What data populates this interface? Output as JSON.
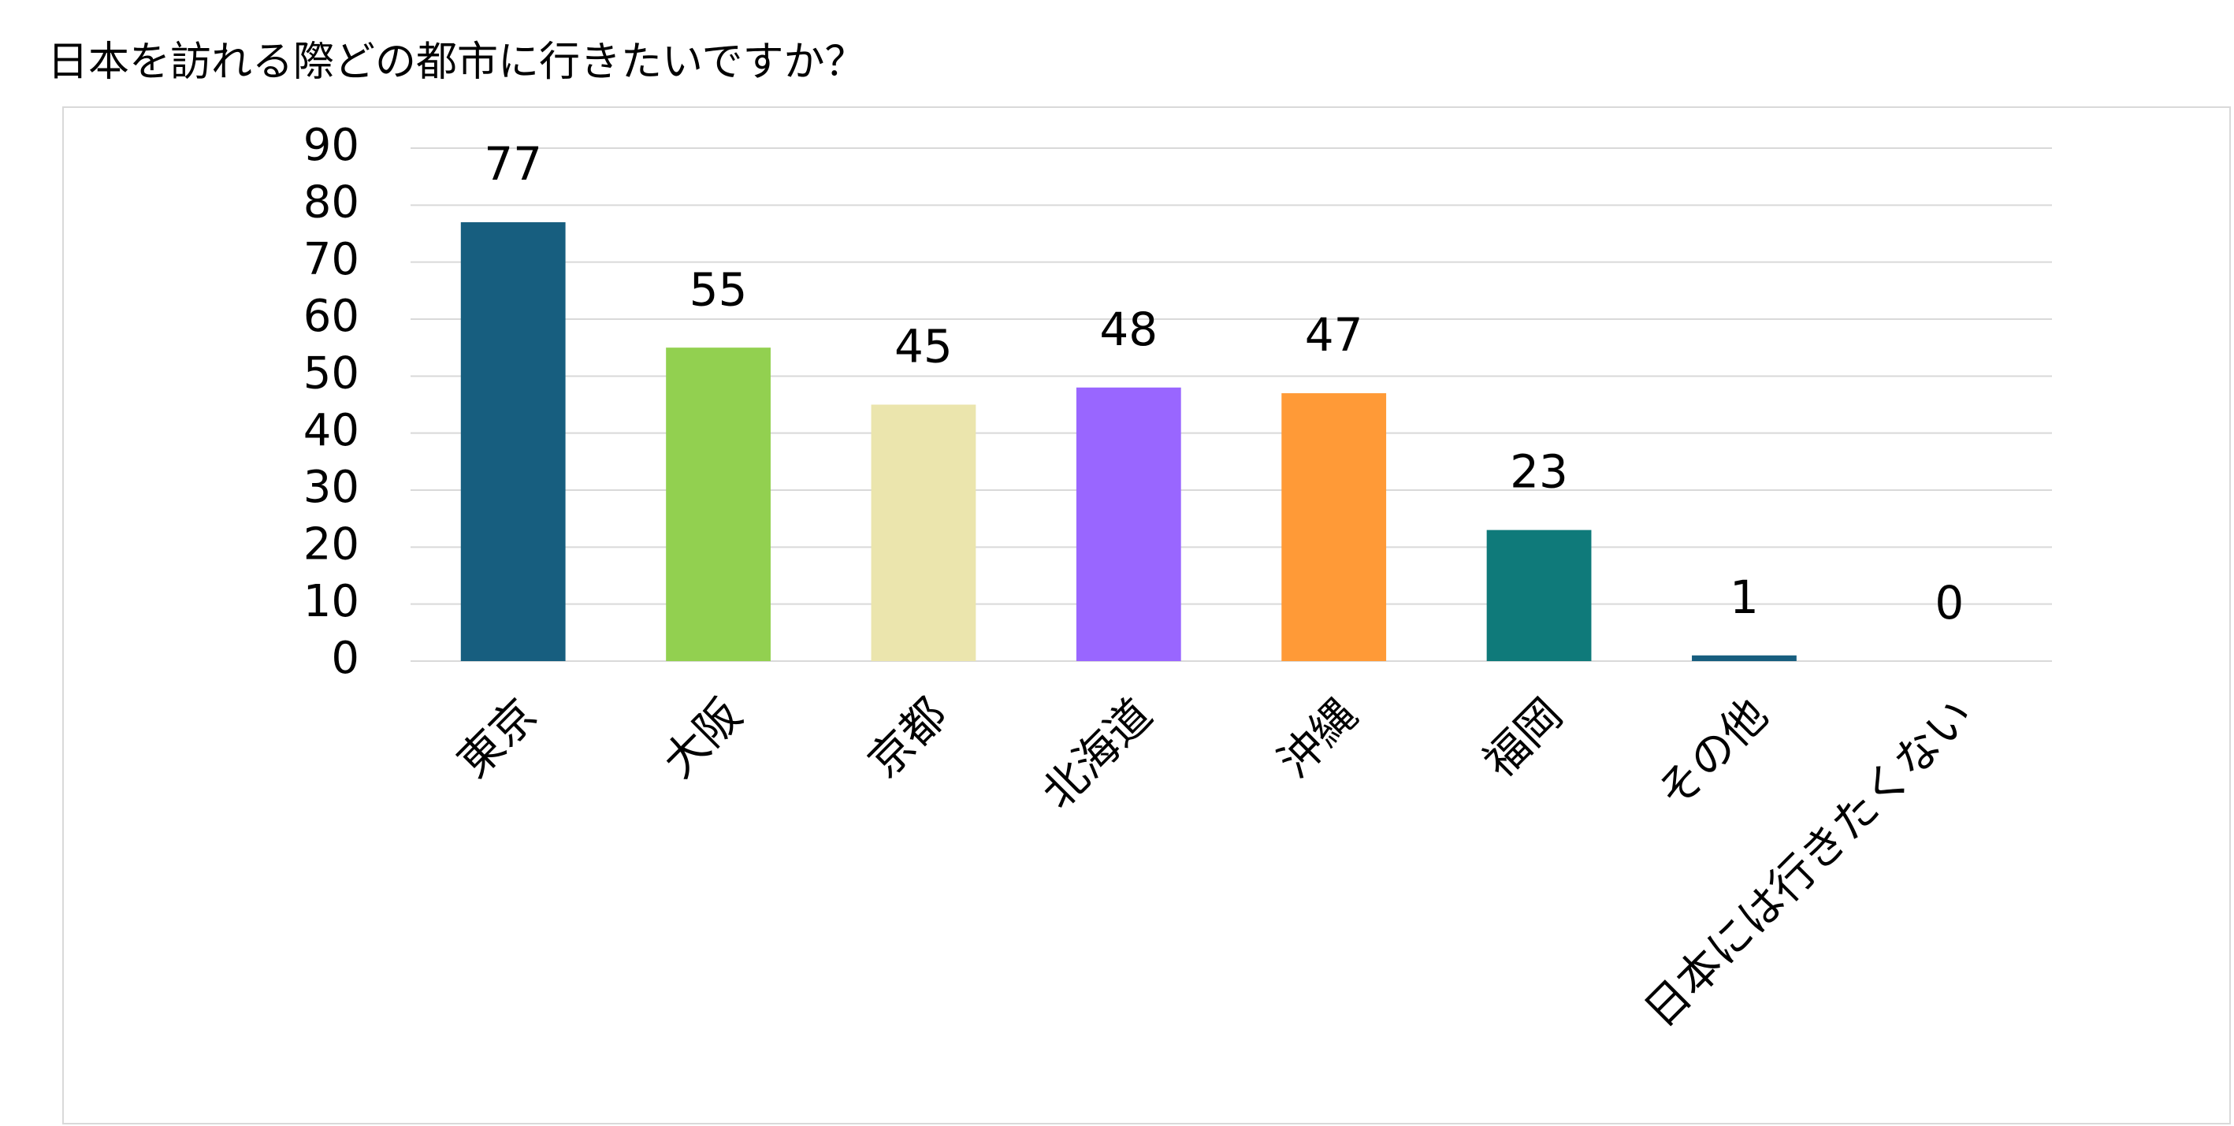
{
  "chart_data": {
    "type": "bar",
    "title": "日本を訪れる際どの都市に行きたいですか？",
    "categories": [
      "東京",
      "大阪",
      "京都",
      "北海道",
      "沖縄",
      "福岡",
      "その他",
      "日本には行きたくない"
    ],
    "values": [
      77,
      55,
      45,
      48,
      47,
      23,
      1,
      0
    ],
    "colors": [
      "#175e7f",
      "#92d050",
      "#ebe5ad",
      "#9966ff",
      "#ff9a37",
      "#0f7a7a",
      "#175e7f",
      "#175e7f"
    ],
    "ylim": [
      0,
      90
    ],
    "yticks": [
      0,
      10,
      20,
      30,
      40,
      50,
      60,
      70,
      80,
      90
    ],
    "grid": true
  }
}
